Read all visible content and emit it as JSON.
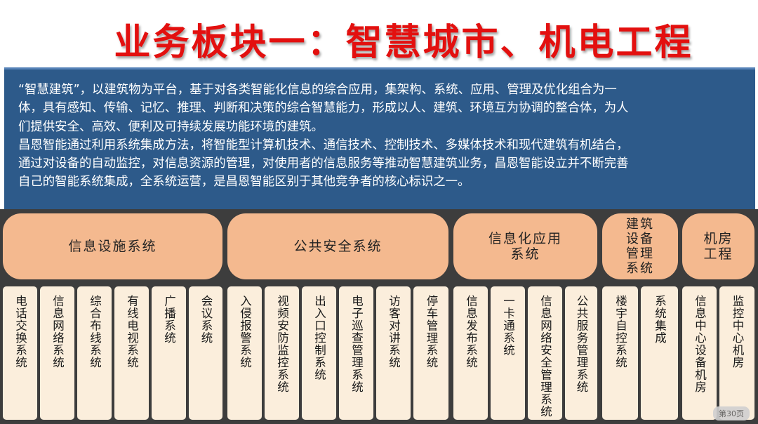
{
  "title": "业务板块一：智慧城市、机电工程",
  "intro": {
    "lines": [
      "“智慧建筑”，以建筑物为平台，基于对各类智能化信息的综合应用，集架构、系统、应用、管理及优化组合为一",
      "体，具有感知、传输、记忆、推理、判断和决策的综合智慧能力，形成以人、建筑、环境互为协调的整合体，为人",
      "们提供安全、高效、便利及可持续发展功能环境的建筑。",
      "昌恩智能通过利用系统集成方法，将智能型计算机技术、通信技术、控制技术、多媒体技术和现代建筑有机结合，",
      "通过对设备的自动监控，对信息资源的管理，对使用者的信息服务等推动智慧建筑业务，昌恩智能设立并不断完善",
      "自己的智能系统集成，全系统运营，是昌恩智能区别于其他竞争者的核心标识之一。"
    ]
  },
  "categories": [
    {
      "lines": [
        "信息设施系统"
      ],
      "items": [
        "电话交换系统",
        "信息网络系统",
        "综合布线系统",
        "有线电视系统",
        "广播系统",
        "会议系统"
      ]
    },
    {
      "lines": [
        "公共安全系统"
      ],
      "items": [
        "入侵报警系统",
        "视频安防监控系统",
        "出入口控制系统",
        "电子巡查管理系统",
        "访客对讲系统",
        "停车管理系统"
      ]
    },
    {
      "lines": [
        "信息化应用",
        "系统"
      ],
      "items": [
        "信息发布系统",
        "一卡通系统",
        "信息网络安全管理系统",
        "公共服务管理系统"
      ]
    },
    {
      "lines": [
        "建筑",
        "设备",
        "管理",
        "系统"
      ],
      "items": [
        "楼宇自控系统",
        "系统集成"
      ]
    },
    {
      "lines": [
        "机房",
        "工程"
      ],
      "items": [
        "信息中心设备机房",
        "监控中心机房"
      ]
    }
  ],
  "page_number": "第30页"
}
